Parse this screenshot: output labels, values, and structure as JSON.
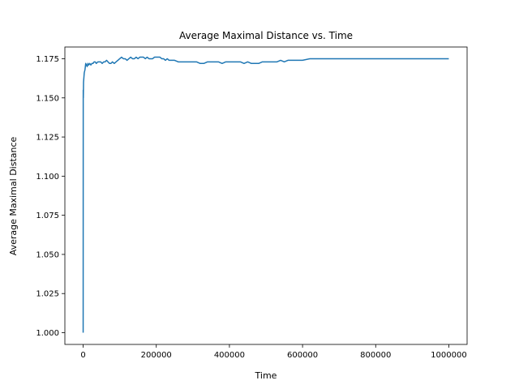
{
  "chart_data": {
    "type": "line",
    "title": "Average Maximal Distance vs. Time",
    "xlabel": "Time",
    "ylabel": "Average Maximal Distance",
    "xlim": [
      -50000,
      1050000
    ],
    "ylim": [
      0.9925,
      1.1825
    ],
    "xticks": [
      0,
      200000,
      400000,
      600000,
      800000,
      1000000
    ],
    "xtick_labels": [
      "0",
      "200000",
      "400000",
      "600000",
      "800000",
      "1000000"
    ],
    "yticks": [
      1.0,
      1.025,
      1.05,
      1.075,
      1.1,
      1.125,
      1.15,
      1.175
    ],
    "ytick_labels": [
      "1.000",
      "1.025",
      "1.050",
      "1.075",
      "1.100",
      "1.125",
      "1.150",
      "1.175"
    ],
    "grid": false,
    "line_color": "#1f77b4",
    "series": [
      {
        "values_x": [
          0,
          200,
          500,
          1000,
          2000,
          3000,
          5000,
          7000,
          9000,
          11000,
          13000,
          15000,
          18000,
          21000,
          24000,
          27000,
          30000,
          33000,
          36000,
          40000,
          44000,
          48000,
          52000,
          56000,
          60000,
          64000,
          68000,
          72000,
          76000,
          80000,
          85000,
          90000,
          95000,
          100000,
          105000,
          110000,
          115000,
          120000,
          125000,
          130000,
          135000,
          140000,
          145000,
          150000,
          155000,
          160000,
          165000,
          170000,
          175000,
          180000,
          185000,
          190000,
          195000,
          200000,
          205000,
          210000,
          215000,
          220000,
          225000,
          230000,
          235000,
          240000,
          245000,
          250000,
          260000,
          270000,
          280000,
          290000,
          300000,
          310000,
          320000,
          330000,
          340000,
          350000,
          360000,
          370000,
          380000,
          390000,
          400000,
          410000,
          420000,
          430000,
          440000,
          450000,
          460000,
          470000,
          480000,
          490000,
          500000,
          510000,
          520000,
          530000,
          540000,
          550000,
          560000,
          570000,
          580000,
          590000,
          600000,
          620000,
          640000,
          660000,
          680000,
          700000,
          720000,
          740000,
          760000,
          780000,
          800000,
          820000,
          840000,
          860000,
          880000,
          900000,
          920000,
          940000,
          960000,
          980000,
          1000000
        ],
        "values_y": [
          1.0,
          1.155,
          1.15,
          1.16,
          1.163,
          1.166,
          1.168,
          1.172,
          1.171,
          1.17,
          1.172,
          1.171,
          1.172,
          1.171,
          1.172,
          1.172,
          1.173,
          1.173,
          1.172,
          1.173,
          1.173,
          1.173,
          1.172,
          1.173,
          1.173,
          1.174,
          1.173,
          1.172,
          1.172,
          1.173,
          1.172,
          1.173,
          1.174,
          1.175,
          1.176,
          1.175,
          1.175,
          1.174,
          1.175,
          1.176,
          1.175,
          1.175,
          1.176,
          1.175,
          1.176,
          1.176,
          1.176,
          1.175,
          1.176,
          1.175,
          1.175,
          1.175,
          1.176,
          1.176,
          1.176,
          1.176,
          1.175,
          1.175,
          1.174,
          1.175,
          1.174,
          1.174,
          1.174,
          1.174,
          1.173,
          1.173,
          1.173,
          1.173,
          1.173,
          1.173,
          1.172,
          1.172,
          1.173,
          1.173,
          1.173,
          1.173,
          1.172,
          1.173,
          1.173,
          1.173,
          1.173,
          1.173,
          1.172,
          1.173,
          1.172,
          1.172,
          1.172,
          1.173,
          1.173,
          1.173,
          1.173,
          1.173,
          1.174,
          1.173,
          1.174,
          1.174,
          1.174,
          1.174,
          1.174,
          1.175,
          1.175,
          1.175,
          1.175,
          1.175,
          1.175,
          1.175,
          1.175,
          1.175,
          1.175,
          1.175,
          1.175,
          1.175,
          1.175,
          1.175,
          1.175,
          1.175,
          1.175,
          1.175,
          1.175
        ]
      }
    ]
  }
}
